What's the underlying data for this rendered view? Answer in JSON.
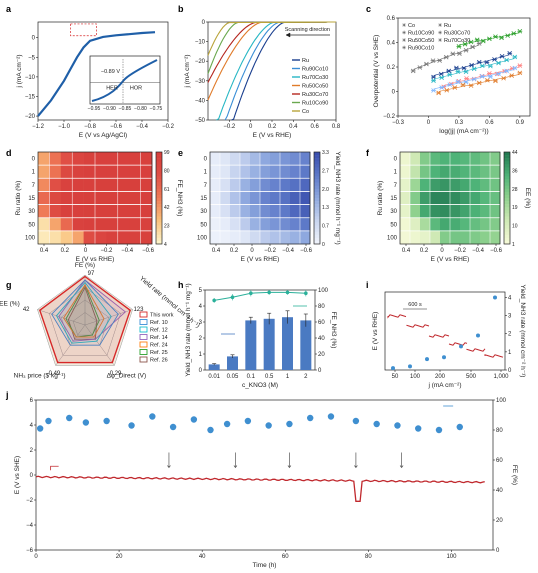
{
  "panels": {
    "a": {
      "label": "a"
    },
    "b": {
      "label": "b"
    },
    "c": {
      "label": "c"
    },
    "d": {
      "label": "d"
    },
    "e": {
      "label": "e"
    },
    "f": {
      "label": "f"
    },
    "g": {
      "label": "g"
    },
    "h": {
      "label": "h"
    },
    "i": {
      "label": "i"
    },
    "j": {
      "label": "j"
    }
  },
  "annotations": {
    "a_inset_value": "−0.89 V",
    "a_her": "HER",
    "a_hor": "HOR",
    "b_scan": "Scanning direction",
    "i_time": "600 s"
  },
  "chart_data": [
    {
      "id": "a",
      "type": "line",
      "xlabel": "E (V vs Ag/AgCl)",
      "ylabel": "j (mA cm⁻²)",
      "xlim": [
        -1.2,
        -0.2
      ],
      "ylim": [
        -21,
        4
      ],
      "xticks": [
        "−1.2",
        "−1.0",
        "−0.8",
        "−0.6",
        "−0.4",
        "−0.2"
      ],
      "yticks": [
        "−20",
        "−15",
        "−10",
        "−5",
        "0"
      ],
      "series": [
        {
          "x": [
            -1.2,
            -1.1,
            -1.0,
            -0.95,
            -0.9,
            -0.85,
            -0.8,
            -0.7,
            -0.6,
            -0.5,
            -0.4,
            -0.3
          ],
          "values": [
            -20,
            -16,
            -11,
            -8,
            -5,
            -2.5,
            -0.8,
            0.2,
            0.6,
            0.9,
            1.2,
            1.4
          ],
          "color": "#1f5fa8"
        }
      ],
      "inset": {
        "xticks": [
          "−0.95",
          "−0.90",
          "−0.85",
          "−0.80",
          "−0.75"
        ]
      }
    },
    {
      "id": "b",
      "type": "line",
      "xlabel": "E (V vs RHE)",
      "ylabel": "j (mA cm⁻²)",
      "xlim": [
        -0.4,
        0.8
      ],
      "ylim": [
        -50,
        0
      ],
      "xticks": [
        "−0.2",
        "0",
        "0.2",
        "0.4",
        "0.6",
        "0.8"
      ],
      "yticks": [
        "−50",
        "−40",
        "−30",
        "−20",
        "−10",
        "0"
      ],
      "series": [
        {
          "name": "Ru",
          "color": "#1a3f8f",
          "onset": 0.32,
          "slope": 160
        },
        {
          "name": "Ru90Co10",
          "color": "#3a8ed6",
          "onset": 0.27,
          "slope": 150
        },
        {
          "name": "Ru70Co30",
          "color": "#27b7c4",
          "onset": 0.22,
          "slope": 140
        },
        {
          "name": "Ru50Co50",
          "color": "#e07b2a",
          "onset": 0.1,
          "slope": 120
        },
        {
          "name": "Ru30Co70",
          "color": "#b5261f",
          "onset": 0.05,
          "slope": 110
        },
        {
          "name": "Ru10Co90",
          "color": "#6aa84f",
          "onset": -0.12,
          "slope": 200
        },
        {
          "name": "Co",
          "color": "#b9a43a",
          "onset": -0.2,
          "slope": 220
        }
      ]
    },
    {
      "id": "c",
      "type": "scatter",
      "xlabel": "log(|j| (mA cm⁻²))",
      "ylabel": "Overpotential (V vs SHE)",
      "xlim": [
        -0.3,
        1.0
      ],
      "ylim": [
        -0.2,
        0.6
      ],
      "xticks": [
        "−0.3",
        "0",
        "0.3",
        "0.6",
        "0.9"
      ],
      "yticks": [
        "−0.2",
        "0",
        "0.2",
        "0.4",
        "0.6"
      ],
      "series": [
        {
          "name": "Co",
          "color": "#777777",
          "x0": -0.15,
          "x1": 0.5,
          "y0": 0.18,
          "y1": 0.38
        },
        {
          "name": "Ru",
          "color": "#1a3f8f",
          "x0": 0.05,
          "x1": 0.8,
          "y0": 0.13,
          "y1": 0.3
        },
        {
          "name": "Ru10Co90",
          "color": "#27b7c4",
          "x0": 0.05,
          "x1": 0.85,
          "y0": 0.1,
          "y1": 0.27
        },
        {
          "name": "Ru30Co70",
          "color": "#ff7f7f",
          "x0": 0.15,
          "x1": 0.9,
          "y0": 0.05,
          "y1": 0.2
        },
        {
          "name": "Ru50Co50",
          "color": "#7fb5ff",
          "x0": 0.05,
          "x1": 0.85,
          "y0": 0.02,
          "y1": 0.18
        },
        {
          "name": "Ru70Co30",
          "color": "#e07b2a",
          "x0": 0.1,
          "x1": 0.9,
          "y0": 0.0,
          "y1": 0.14
        },
        {
          "name": "Ru90Co10",
          "color": "#2ca02c",
          "x0": 0.3,
          "x1": 0.9,
          "y0": 0.38,
          "y1": 0.48
        }
      ]
    },
    {
      "id": "d",
      "type": "heatmap",
      "palette": "red",
      "xlabel": "E (V vs RHE)",
      "ylabel": "Ru ratio (%)",
      "rows": [
        "0",
        "1",
        "7",
        "15",
        "30",
        "50",
        "100"
      ],
      "xticks": [
        "0.4",
        "0.2",
        "0",
        "−0.2",
        "−0.4",
        "−0.6"
      ],
      "cbar": {
        "label": "FE_NH3 (%)",
        "ticks": [
          "99",
          "80",
          "61",
          "42",
          "23",
          "4"
        ]
      },
      "values": [
        [
          0.35,
          0.55,
          0.75,
          0.9,
          0.97,
          0.98,
          0.98,
          0.98,
          0.97,
          0.97
        ],
        [
          0.35,
          0.55,
          0.85,
          0.95,
          0.98,
          0.98,
          0.98,
          0.98,
          0.98,
          0.98
        ],
        [
          0.45,
          0.75,
          0.95,
          0.98,
          0.98,
          0.99,
          0.99,
          0.99,
          0.99,
          0.99
        ],
        [
          0.6,
          0.85,
          0.97,
          0.98,
          0.99,
          0.99,
          0.99,
          0.99,
          0.99,
          0.99
        ],
        [
          0.5,
          0.8,
          0.97,
          0.98,
          0.99,
          0.99,
          0.99,
          0.99,
          0.99,
          0.99
        ],
        [
          0.1,
          0.35,
          0.6,
          0.95,
          0.98,
          0.99,
          0.99,
          0.98,
          0.97,
          0.97
        ],
        [
          0.05,
          0.1,
          0.2,
          0.35,
          0.8,
          0.9,
          0.97,
          0.97,
          0.96,
          0.96
        ]
      ]
    },
    {
      "id": "e",
      "type": "heatmap",
      "palette": "blue",
      "xlabel": "E (V vs RHE)",
      "ylabel": "",
      "rows": [
        "0",
        "1",
        "7",
        "15",
        "30",
        "50",
        "100"
      ],
      "xticks": [
        "0.4",
        "0.2",
        "0",
        "−0.2",
        "−0.4",
        "−0.6"
      ],
      "cbar": {
        "label": "Yield_NH3 rate (mmol h⁻¹ mg⁻¹)",
        "ticks": [
          "3.3",
          "2.7",
          "2.0",
          "1.3",
          "0.7",
          "0"
        ]
      },
      "values": [
        [
          0.05,
          0.1,
          0.2,
          0.3,
          0.4,
          0.5,
          0.55,
          0.6,
          0.65,
          0.7
        ],
        [
          0.05,
          0.1,
          0.25,
          0.35,
          0.45,
          0.55,
          0.6,
          0.65,
          0.7,
          0.75
        ],
        [
          0.05,
          0.15,
          0.3,
          0.45,
          0.55,
          0.65,
          0.7,
          0.75,
          0.8,
          0.85
        ],
        [
          0.05,
          0.2,
          0.35,
          0.5,
          0.6,
          0.7,
          0.75,
          0.8,
          0.9,
          0.95
        ],
        [
          0.05,
          0.15,
          0.3,
          0.45,
          0.55,
          0.65,
          0.7,
          0.75,
          0.85,
          0.9
        ],
        [
          0.02,
          0.05,
          0.15,
          0.3,
          0.45,
          0.55,
          0.6,
          0.65,
          0.7,
          0.75
        ],
        [
          0.01,
          0.02,
          0.05,
          0.1,
          0.2,
          0.3,
          0.35,
          0.4,
          0.45,
          0.5
        ]
      ]
    },
    {
      "id": "f",
      "type": "heatmap",
      "palette": "green",
      "xlabel": "E (V vs RHE)",
      "ylabel": "Ru ratio (%)",
      "rows": [
        "0",
        "1",
        "7",
        "15",
        "30",
        "50",
        "100"
      ],
      "xticks": [
        "0.4",
        "0.2",
        "0",
        "−0.2",
        "−0.4",
        "−0.6"
      ],
      "cbar": {
        "label": "EE (%)",
        "ticks": [
          "44",
          "36",
          "28",
          "19",
          "10",
          "1"
        ]
      },
      "values": [
        [
          0.05,
          0.25,
          0.55,
          0.7,
          0.75,
          0.75,
          0.72,
          0.68,
          0.62,
          0.55
        ],
        [
          0.05,
          0.3,
          0.6,
          0.75,
          0.8,
          0.78,
          0.74,
          0.7,
          0.64,
          0.58
        ],
        [
          0.1,
          0.45,
          0.75,
          0.85,
          0.88,
          0.85,
          0.8,
          0.75,
          0.68,
          0.62
        ],
        [
          0.15,
          0.55,
          0.85,
          0.95,
          0.95,
          0.92,
          0.86,
          0.8,
          0.72,
          0.65
        ],
        [
          0.1,
          0.5,
          0.8,
          0.9,
          0.92,
          0.88,
          0.82,
          0.76,
          0.7,
          0.62
        ],
        [
          0.02,
          0.15,
          0.4,
          0.7,
          0.8,
          0.78,
          0.72,
          0.66,
          0.6,
          0.55
        ],
        [
          0.01,
          0.05,
          0.1,
          0.25,
          0.55,
          0.6,
          0.6,
          0.56,
          0.52,
          0.48
        ]
      ]
    },
    {
      "id": "g",
      "type": "radar",
      "axes": [
        "FE (%)",
        "Yield rate (mmol cm⁻² h⁻¹)",
        "Δφ_Direct (V)",
        "NH₃ price ($ kg⁻¹)",
        "EE (%)"
      ],
      "axis_values": [
        "97",
        "123",
        "0.29",
        "0.49",
        "42"
      ],
      "series": [
        {
          "name": "This work",
          "color": "#d62728",
          "values": [
            0.97,
            0.95,
            0.93,
            0.93,
            0.95
          ]
        },
        {
          "name": "Ref. 10",
          "color": "#3a8ed6",
          "values": [
            0.9,
            0.7,
            0.5,
            0.5,
            0.7
          ]
        },
        {
          "name": "Ref. 12",
          "color": "#17becf",
          "values": [
            0.85,
            0.55,
            0.4,
            0.45,
            0.6
          ]
        },
        {
          "name": "Ref. 14",
          "color": "#9467bd",
          "values": [
            0.9,
            0.85,
            0.35,
            0.4,
            0.55
          ]
        },
        {
          "name": "Ref. 24",
          "color": "#ff7f0e",
          "values": [
            0.8,
            0.4,
            0.3,
            0.3,
            0.45
          ]
        },
        {
          "name": "Ref. 25",
          "color": "#2ca02c",
          "values": [
            0.8,
            0.3,
            0.25,
            0.3,
            0.4
          ]
        },
        {
          "name": "Ref. 26",
          "color": "#8c564b",
          "values": [
            0.75,
            0.25,
            0.35,
            0.35,
            0.35
          ]
        }
      ]
    },
    {
      "id": "h",
      "type": "bar",
      "xlabel": "c_KNO3 (M)",
      "ylabel": "Yield_NH3 rate (mmol h⁻¹ mg⁻¹)",
      "y2label": "FE_NH3 (%)",
      "categories": [
        "0.01",
        "0.05",
        "0.1",
        "0.5",
        "1",
        "2"
      ],
      "values": [
        0.35,
        0.85,
        3.1,
        3.2,
        3.3,
        3.1
      ],
      "errors": [
        0.05,
        0.1,
        0.2,
        0.35,
        0.4,
        0.4
      ],
      "fe": [
        87,
        91,
        96,
        97,
        97,
        96
      ],
      "fe_err": [
        3,
        4,
        4,
        3,
        3,
        4
      ],
      "ylim": [
        0,
        5
      ],
      "y2lim": [
        0,
        100
      ],
      "yticks": [
        "0",
        "1",
        "2",
        "3",
        "4",
        "5"
      ],
      "y2ticks": [
        "0",
        "20",
        "40",
        "60",
        "80",
        "100"
      ]
    },
    {
      "id": "i",
      "type": "line",
      "xlabel": "j (mA cm⁻²)",
      "ylabel": "E (V vs RHE)",
      "y2label": "Yield_NH3 rate (mmol cm⁻² h⁻¹)",
      "xticks": [
        "50",
        "100",
        "200",
        "500",
        "1,000"
      ],
      "y2ticks": [
        "0",
        "1",
        "2",
        "3",
        "4"
      ],
      "yield_points": [
        0.1,
        0.2,
        0.6,
        0.7,
        1.3,
        1.9,
        4.0
      ]
    },
    {
      "id": "j",
      "type": "line",
      "xlabel": "Time (h)",
      "ylabel": "E (V vs SHE)",
      "y2label": "FE (%)",
      "xlim": [
        0,
        110
      ],
      "ylim": [
        -6,
        6
      ],
      "y2lim": [
        0,
        100
      ],
      "xticks": [
        "0",
        "20",
        "40",
        "60",
        "80",
        "100"
      ],
      "yticks": [
        "−6",
        "−4",
        "−2",
        "0",
        "2",
        "4",
        "6"
      ],
      "y2ticks": [
        "0",
        "20",
        "40",
        "60",
        "80",
        "100"
      ],
      "fe_points": [
        [
          1,
          81
        ],
        [
          3,
          86
        ],
        [
          8,
          88
        ],
        [
          12,
          85
        ],
        [
          17,
          86
        ],
        [
          23,
          83
        ],
        [
          28,
          89
        ],
        [
          33,
          82
        ],
        [
          38,
          87
        ],
        [
          42,
          80
        ],
        [
          46,
          84
        ],
        [
          51,
          86
        ],
        [
          56,
          83
        ],
        [
          61,
          84
        ],
        [
          66,
          88
        ],
        [
          71,
          89
        ],
        [
          77,
          86
        ],
        [
          82,
          84
        ],
        [
          87,
          83
        ],
        [
          92,
          81
        ],
        [
          97,
          80
        ],
        [
          102,
          82
        ]
      ],
      "arrows": [
        4,
        32,
        48,
        61,
        77,
        88
      ]
    }
  ]
}
